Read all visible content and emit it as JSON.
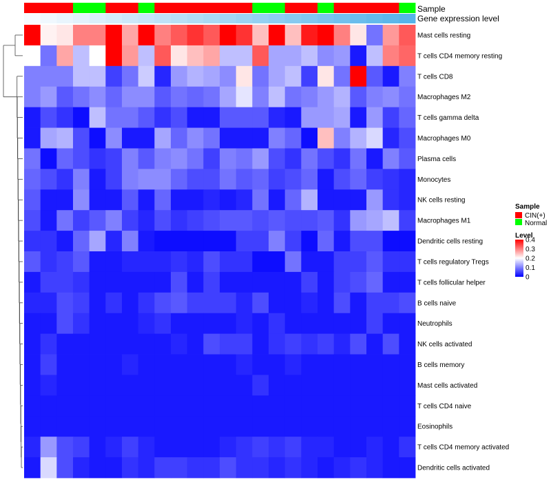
{
  "chart_data": {
    "type": "heatmap",
    "title": "",
    "annotations": {
      "sample_label": "Sample",
      "expression_label": "Gene expression level",
      "sample_groups": [
        "CIN(+)",
        "CIN(+)",
        "CIN(+)",
        "Normal",
        "Normal",
        "CIN(+)",
        "CIN(+)",
        "Normal",
        "CIN(+)",
        "CIN(+)",
        "CIN(+)",
        "CIN(+)",
        "CIN(+)",
        "CIN(+)",
        "Normal",
        "Normal",
        "CIN(+)",
        "CIN(+)",
        "Normal",
        "CIN(+)",
        "CIN(+)",
        "CIN(+)",
        "CIN(+)",
        "Normal"
      ],
      "expression_levels": [
        0.02,
        0.05,
        0.08,
        0.11,
        0.14,
        0.17,
        0.2,
        0.23,
        0.26,
        0.29,
        0.32,
        0.35,
        0.38,
        0.41,
        0.44,
        0.47,
        0.5,
        0.53,
        0.56,
        0.59,
        0.62,
        0.65,
        0.68,
        0.71
      ]
    },
    "rows": [
      "Mast cells resting",
      "T cells CD4 memory resting",
      "T cells CD8",
      "Macrophages M2",
      "T cells gamma delta",
      "Macrophages M0",
      "Plasma cells",
      "Monocytes",
      "NK cells resting",
      "Macrophages M1",
      "Dendritic cells resting",
      "T cells regulatory  Tregs",
      "T cells follicular helper",
      "B cells naive",
      "Neutrophils",
      "NK cells activated",
      "B cells memory",
      "Mast cells activated",
      "T cells CD4 naive",
      "Eosinophils",
      "T cells CD4 memory activated",
      "Dendritic cells activated"
    ],
    "values": [
      [
        0.4,
        0.21,
        0.22,
        0.3,
        0.3,
        0.4,
        0.27,
        0.4,
        0.3,
        0.33,
        0.36,
        0.33,
        0.4,
        0.36,
        0.25,
        0.4,
        0.25,
        0.38,
        0.4,
        0.3,
        0.22,
        0.09,
        0.28,
        0.33
      ],
      [
        0.2,
        0.09,
        0.27,
        0.15,
        0.2,
        0.4,
        0.28,
        0.15,
        0.33,
        0.22,
        0.25,
        0.27,
        0.15,
        0.15,
        0.33,
        0.13,
        0.13,
        0.15,
        0.11,
        0.12,
        0.02,
        0.15,
        0.3,
        0.32
      ],
      [
        0.1,
        0.1,
        0.1,
        0.15,
        0.15,
        0.05,
        0.09,
        0.16,
        0.03,
        0.12,
        0.14,
        0.13,
        0.11,
        0.22,
        0.09,
        0.13,
        0.15,
        0.05,
        0.22,
        0.09,
        0.4,
        0.07,
        0.02,
        0.1
      ],
      [
        0.1,
        0.12,
        0.07,
        0.09,
        0.11,
        0.08,
        0.11,
        0.11,
        0.07,
        0.09,
        0.08,
        0.09,
        0.13,
        0.18,
        0.1,
        0.15,
        0.09,
        0.1,
        0.12,
        0.14,
        0.07,
        0.1,
        0.11,
        0.09
      ],
      [
        0.02,
        0.06,
        0.04,
        0.01,
        0.15,
        0.09,
        0.09,
        0.07,
        0.04,
        0.06,
        0.02,
        0.02,
        0.07,
        0.07,
        0.07,
        0.03,
        0.02,
        0.12,
        0.12,
        0.13,
        0.02,
        0.12,
        0.05,
        0.08
      ],
      [
        0.02,
        0.13,
        0.14,
        0.06,
        0.01,
        0.11,
        0.02,
        0.02,
        0.13,
        0.08,
        0.11,
        0.09,
        0.02,
        0.02,
        0.02,
        0.1,
        0.08,
        0.01,
        0.25,
        0.1,
        0.14,
        0.17,
        0.03,
        0.06
      ],
      [
        0.09,
        0.01,
        0.08,
        0.06,
        0.04,
        0.05,
        0.1,
        0.07,
        0.1,
        0.11,
        0.09,
        0.05,
        0.1,
        0.09,
        0.12,
        0.06,
        0.04,
        0.09,
        0.06,
        0.04,
        0.09,
        0.02,
        0.1,
        0.07
      ],
      [
        0.08,
        0.06,
        0.04,
        0.1,
        0.02,
        0.05,
        0.1,
        0.11,
        0.11,
        0.08,
        0.06,
        0.06,
        0.09,
        0.07,
        0.08,
        0.05,
        0.06,
        0.08,
        0.02,
        0.06,
        0.08,
        0.05,
        0.04,
        0.03
      ],
      [
        0.07,
        0.02,
        0.02,
        0.11,
        0.02,
        0.02,
        0.07,
        0.02,
        0.08,
        0.02,
        0.02,
        0.03,
        0.02,
        0.03,
        0.09,
        0.02,
        0.08,
        0.14,
        0.02,
        0.02,
        0.02,
        0.12,
        0.04,
        0.03
      ],
      [
        0.06,
        0.02,
        0.09,
        0.05,
        0.07,
        0.1,
        0.05,
        0.03,
        0.06,
        0.04,
        0.05,
        0.06,
        0.07,
        0.07,
        0.06,
        0.07,
        0.06,
        0.06,
        0.07,
        0.04,
        0.12,
        0.13,
        0.15,
        0.05
      ],
      [
        0.04,
        0.04,
        0.02,
        0.08,
        0.13,
        0.03,
        0.1,
        0.02,
        0.01,
        0.01,
        0.01,
        0.01,
        0.01,
        0.05,
        0.05,
        0.1,
        0.05,
        0.01,
        0.08,
        0.02,
        0.06,
        0.06,
        0.01,
        0.01
      ],
      [
        0.07,
        0.04,
        0.05,
        0.07,
        0.02,
        0.02,
        0.03,
        0.03,
        0.03,
        0.04,
        0.03,
        0.06,
        0.04,
        0.04,
        0.01,
        0.01,
        0.09,
        0.02,
        0.02,
        0.05,
        0.05,
        0.07,
        0.04,
        0.04
      ],
      [
        0.02,
        0.05,
        0.05,
        0.04,
        0.02,
        0.02,
        0.02,
        0.02,
        0.02,
        0.06,
        0.02,
        0.05,
        0.02,
        0.02,
        0.02,
        0.02,
        0.02,
        0.05,
        0.02,
        0.05,
        0.06,
        0.08,
        0.02,
        0.02
      ],
      [
        0.03,
        0.03,
        0.06,
        0.05,
        0.02,
        0.04,
        0.02,
        0.04,
        0.06,
        0.07,
        0.05,
        0.05,
        0.05,
        0.03,
        0.06,
        0.02,
        0.02,
        0.03,
        0.02,
        0.06,
        0.02,
        0.05,
        0.05,
        0.06
      ],
      [
        0.02,
        0.02,
        0.06,
        0.04,
        0.02,
        0.02,
        0.02,
        0.03,
        0.04,
        0.02,
        0.02,
        0.02,
        0.02,
        0.03,
        0.02,
        0.04,
        0.02,
        0.02,
        0.02,
        0.02,
        0.02,
        0.05,
        0.02,
        0.02
      ],
      [
        0.02,
        0.04,
        0.02,
        0.02,
        0.02,
        0.02,
        0.02,
        0.02,
        0.02,
        0.03,
        0.02,
        0.06,
        0.05,
        0.05,
        0.02,
        0.04,
        0.05,
        0.04,
        0.05,
        0.03,
        0.06,
        0.02,
        0.06,
        0.02
      ],
      [
        0.02,
        0.05,
        0.02,
        0.02,
        0.02,
        0.02,
        0.03,
        0.02,
        0.02,
        0.02,
        0.02,
        0.02,
        0.02,
        0.03,
        0.02,
        0.02,
        0.03,
        0.02,
        0.02,
        0.02,
        0.02,
        0.02,
        0.02,
        0.02
      ],
      [
        0.02,
        0.03,
        0.02,
        0.02,
        0.02,
        0.02,
        0.02,
        0.02,
        0.02,
        0.02,
        0.02,
        0.02,
        0.02,
        0.02,
        0.04,
        0.02,
        0.02,
        0.02,
        0.02,
        0.02,
        0.02,
        0.02,
        0.02,
        0.02
      ],
      [
        0.02,
        0.02,
        0.02,
        0.02,
        0.02,
        0.02,
        0.02,
        0.02,
        0.02,
        0.02,
        0.02,
        0.02,
        0.02,
        0.02,
        0.02,
        0.02,
        0.02,
        0.02,
        0.02,
        0.02,
        0.02,
        0.02,
        0.02,
        0.02
      ],
      [
        0.02,
        0.02,
        0.02,
        0.02,
        0.02,
        0.02,
        0.02,
        0.02,
        0.02,
        0.02,
        0.02,
        0.02,
        0.02,
        0.02,
        0.02,
        0.02,
        0.02,
        0.02,
        0.02,
        0.02,
        0.02,
        0.02,
        0.02,
        0.02
      ],
      [
        0.03,
        0.12,
        0.06,
        0.05,
        0.02,
        0.03,
        0.05,
        0.03,
        0.02,
        0.02,
        0.02,
        0.02,
        0.03,
        0.04,
        0.05,
        0.04,
        0.05,
        0.03,
        0.03,
        0.02,
        0.02,
        0.03,
        0.02,
        0.04
      ],
      [
        0.02,
        0.17,
        0.06,
        0.03,
        0.02,
        0.02,
        0.04,
        0.03,
        0.05,
        0.05,
        0.04,
        0.04,
        0.06,
        0.04,
        0.04,
        0.03,
        0.04,
        0.03,
        0.02,
        0.03,
        0.04,
        0.03,
        0.02,
        0.02
      ]
    ],
    "color_scale": {
      "min": 0,
      "max": 0.4,
      "low": "#0000FF",
      "mid": "#FFFFFF",
      "high": "#FF0000"
    },
    "legend": {
      "sample_title": "Sample",
      "sample_entries": [
        {
          "label": "CIN(+)",
          "color": "#FF0000"
        },
        {
          "label": "Normal",
          "color": "#00FF00"
        }
      ],
      "level_title": "Level",
      "level_ticks": [
        "0.4",
        "0.3",
        "0.2",
        "0.1",
        "0"
      ],
      "level_tick_values": [
        0.4,
        0.3,
        0.2,
        0.1,
        0
      ]
    },
    "annotation_colors": {
      "expr_low": "#F7FBFF",
      "expr_high": "#56B4E9"
    },
    "dendrogram": "row-clustered"
  }
}
